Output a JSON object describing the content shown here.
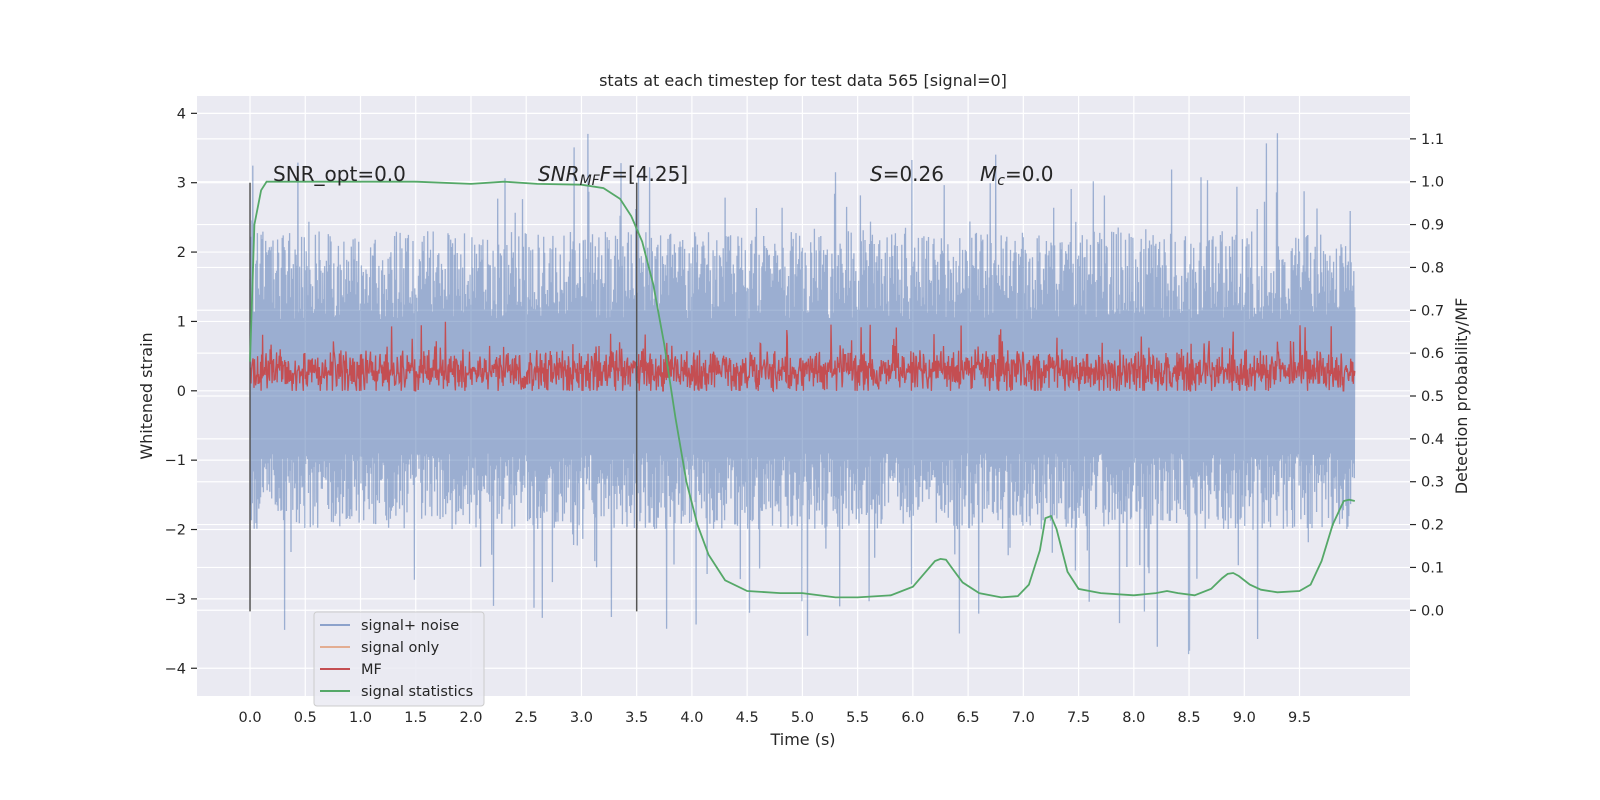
{
  "chart_data": {
    "type": "line",
    "title": "stats at each timestep for test data 565 [signal=0]",
    "xlabel": "Time (s)",
    "ylabel": "Whitened strain",
    "y2label": "Detection probability/MF",
    "xlim": [
      -0.48,
      10.5
    ],
    "ylim": [
      -4.4,
      4.25
    ],
    "y2lim": [
      -0.2,
      1.2
    ],
    "xticks": [
      "0.0",
      "0.5",
      "1.0",
      "1.5",
      "2.0",
      "2.5",
      "3.0",
      "3.5",
      "4.0",
      "4.5",
      "5.0",
      "5.5",
      "6.0",
      "6.5",
      "7.0",
      "7.5",
      "8.0",
      "8.5",
      "9.0",
      "9.5"
    ],
    "yticks": [
      "4",
      "3",
      "2",
      "1",
      "0",
      "−1",
      "−2",
      "−3",
      "−4"
    ],
    "y2ticks": [
      "1.1",
      "1.0",
      "0.9",
      "0.8",
      "0.7",
      "0.6",
      "0.5",
      "0.4",
      "0.3",
      "0.2",
      "0.1",
      "0.0"
    ],
    "grid": true,
    "legend_position": "lower-left",
    "background_color": "#eaeaf2",
    "annotations": {
      "snr_opt": "SNR_opt=0.0",
      "snr_mf_main": "SNR",
      "snr_mf_sub": "MF",
      "snr_mf_value": "=[4.25]",
      "s_main": "S",
      "s_value": "=0.26",
      "mc_main": "M",
      "mc_sub": "c",
      "mc_value": "=0.0"
    },
    "vertical_markers": [
      0.0,
      3.5
    ],
    "series": [
      {
        "name": "signal+ noise",
        "color": "#4c72b0",
        "alpha": 0.5,
        "axis": "left",
        "kind": "noise",
        "x_range": [
          0,
          10
        ],
        "envelope": [
          -2.0,
          2.3
        ],
        "extremes": [
          -4.0,
          3.9
        ]
      },
      {
        "name": "signal only",
        "color": "#dd8452",
        "alpha": 0.5,
        "axis": "left",
        "values": [
          0,
          0
        ]
      },
      {
        "name": "MF",
        "color": "#c44e52",
        "axis": "left",
        "kind": "noise",
        "x_range": [
          0,
          10
        ],
        "envelope": [
          0.0,
          0.6
        ],
        "extremes": [
          0.0,
          1.0
        ]
      },
      {
        "name": "signal statistics",
        "color": "#55a868",
        "axis": "right",
        "x": [
          0.0,
          0.04,
          0.1,
          0.15,
          0.3,
          0.6,
          1.0,
          1.5,
          2.0,
          2.3,
          2.6,
          3.0,
          3.2,
          3.35,
          3.45,
          3.55,
          3.65,
          3.75,
          3.85,
          3.95,
          4.05,
          4.15,
          4.3,
          4.5,
          4.8,
          5.0,
          5.3,
          5.5,
          5.8,
          6.0,
          6.1,
          6.2,
          6.25,
          6.3,
          6.35,
          6.45,
          6.6,
          6.8,
          6.95,
          7.05,
          7.15,
          7.2,
          7.25,
          7.3,
          7.4,
          7.5,
          7.7,
          8.0,
          8.2,
          8.3,
          8.4,
          8.55,
          8.7,
          8.8,
          8.85,
          8.9,
          8.95,
          9.05,
          9.15,
          9.3,
          9.5,
          9.6,
          9.7,
          9.8,
          9.9,
          9.95,
          10.0
        ],
        "values": [
          0.58,
          0.9,
          0.98,
          1.0,
          1.0,
          1.0,
          1.0,
          1.0,
          0.995,
          1.0,
          0.995,
          0.993,
          0.985,
          0.96,
          0.92,
          0.86,
          0.76,
          0.62,
          0.45,
          0.3,
          0.2,
          0.13,
          0.07,
          0.045,
          0.04,
          0.04,
          0.03,
          0.03,
          0.035,
          0.055,
          0.085,
          0.115,
          0.12,
          0.118,
          0.1,
          0.065,
          0.04,
          0.03,
          0.033,
          0.06,
          0.14,
          0.215,
          0.22,
          0.19,
          0.09,
          0.05,
          0.04,
          0.035,
          0.04,
          0.045,
          0.04,
          0.035,
          0.05,
          0.075,
          0.085,
          0.087,
          0.08,
          0.06,
          0.048,
          0.042,
          0.045,
          0.06,
          0.115,
          0.2,
          0.255,
          0.258,
          0.255
        ]
      }
    ]
  }
}
